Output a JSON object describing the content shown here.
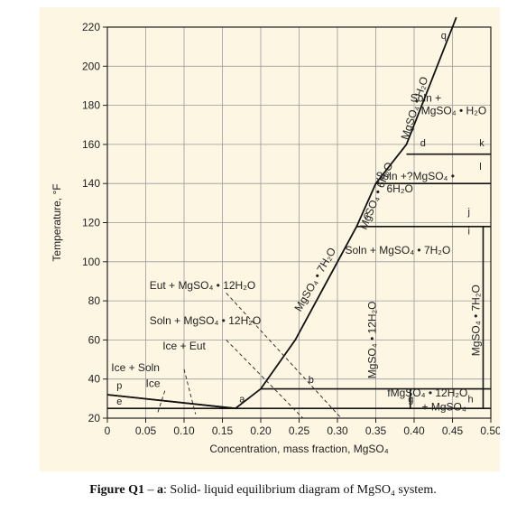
{
  "chart_data": {
    "type": "line",
    "title": "",
    "xlabel": "Concentration, mass fraction, MgSO₄",
    "ylabel": "Temperature, °F",
    "xlim": [
      0,
      0.5
    ],
    "ylim": [
      20,
      220
    ],
    "x_ticks": [
      "0",
      "0.05",
      "0.10",
      "0.15",
      "0.20",
      "0.25",
      "0.30",
      "0.35",
      "0.40",
      "0.45",
      "0.50"
    ],
    "y_ticks": [
      "20",
      "40",
      "60",
      "80",
      "100",
      "120",
      "140",
      "160",
      "180",
      "200",
      "220"
    ],
    "grid": true,
    "series": [
      {
        "values": [
          [
            0.0,
            32
          ],
          [
            0.167,
            25
          ],
          [
            0.2,
            35
          ],
          [
            0.245,
            60
          ],
          [
            0.325,
            118
          ],
          [
            0.35,
            140
          ],
          [
            0.39,
            160
          ],
          [
            0.44,
            210
          ],
          [
            0.455,
            225
          ]
        ]
      }
    ],
    "phase_lines": [
      {
        "points": [
          [
            0.0,
            25
          ],
          [
            0.167,
            25
          ]
        ]
      },
      {
        "points": [
          [
            0.0,
            32
          ],
          [
            0.167,
            25
          ]
        ]
      },
      {
        "points": [
          [
            0.167,
            25
          ],
          [
            0.5,
            25
          ]
        ]
      },
      {
        "points": [
          [
            0.2,
            35
          ],
          [
            0.5,
            35
          ]
        ]
      },
      {
        "points": [
          [
            0.325,
            118
          ],
          [
            0.5,
            118
          ]
        ]
      },
      {
        "points": [
          [
            0.35,
            140
          ],
          [
            0.5,
            140
          ]
        ]
      },
      {
        "points": [
          [
            0.39,
            155
          ],
          [
            0.5,
            155
          ]
        ]
      },
      {
        "points": [
          [
            0.49,
            25
          ],
          [
            0.49,
            118
          ]
        ]
      },
      {
        "points": [
          [
            0.395,
            25
          ],
          [
            0.395,
            35
          ]
        ]
      }
    ],
    "point_labels": [
      "q",
      "d",
      "k",
      "l",
      "c",
      "j",
      "i",
      "h",
      "g",
      "f",
      "b",
      "a",
      "p",
      "e"
    ],
    "region_labels": [
      {
        "line1": "Soln +",
        "line2": "MgSO₄ • H₂O"
      },
      {
        "line1": "Soln +?MgSO₄ •",
        "line2": "6H₂O"
      },
      {
        "line1": "Soln + MgSO₄ • 7H₂O"
      },
      {
        "line1": "Eut + MgSO₄ • 12H₂O"
      },
      {
        "line1": "Soln + MgSO₄ • 12H₂O"
      },
      {
        "line1": "Ice + Eut"
      },
      {
        "line1": "Ice + Soln"
      },
      {
        "line1": "Ice"
      },
      {
        "line1": "fMgSO₄ • 12H₂O"
      },
      {
        "line1": "+ MgSO₄"
      }
    ],
    "curve_labels": [
      "MgSO₄ • H₂O",
      "MgSO₄ • 6H₂O",
      "MgSO₄ • 7H₂O",
      "MgSO₄ • 12H₂O",
      "MgSO₄ • 7H₂O"
    ]
  },
  "caption": {
    "prefix": "Figure Q1",
    "dash": " – ",
    "letter": "a",
    "text": ": Solid- liquid equilibrium diagram of MgSO₄ system."
  }
}
